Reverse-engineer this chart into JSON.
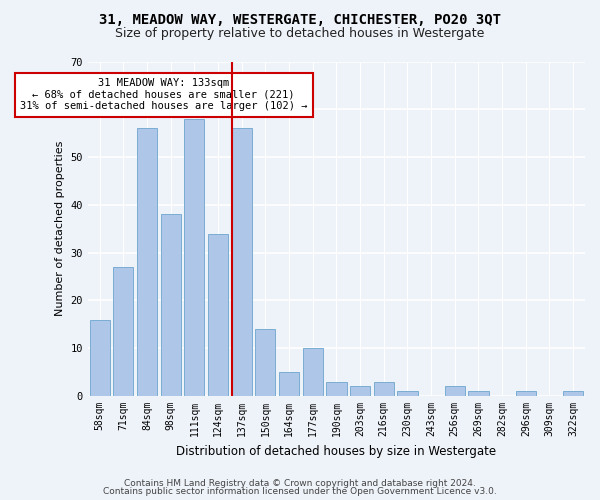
{
  "title_main": "31, MEADOW WAY, WESTERGATE, CHICHESTER, PO20 3QT",
  "title_sub": "Size of property relative to detached houses in Westergate",
  "xlabel": "Distribution of detached houses by size in Westergate",
  "ylabel": "Number of detached properties",
  "categories": [
    "58sqm",
    "71sqm",
    "84sqm",
    "98sqm",
    "111sqm",
    "124sqm",
    "137sqm",
    "150sqm",
    "164sqm",
    "177sqm",
    "190sqm",
    "203sqm",
    "216sqm",
    "230sqm",
    "243sqm",
    "256sqm",
    "269sqm",
    "282sqm",
    "296sqm",
    "309sqm",
    "322sqm"
  ],
  "values": [
    16,
    27,
    56,
    38,
    58,
    34,
    56,
    14,
    5,
    10,
    3,
    2,
    3,
    1,
    0,
    2,
    1,
    0,
    1,
    0,
    1
  ],
  "bar_color": "#aec6e8",
  "bar_edge_color": "#7aadd4",
  "vline_color": "#cc0000",
  "vline_x_index": 6,
  "annotation_line1": "31 MEADOW WAY: 133sqm",
  "annotation_line2": "← 68% of detached houses are smaller (221)",
  "annotation_line3": "31% of semi-detached houses are larger (102) →",
  "annotation_box_color": "#ffffff",
  "annotation_box_edge": "#cc0000",
  "ylim": [
    0,
    70
  ],
  "yticks": [
    0,
    10,
    20,
    30,
    40,
    50,
    60,
    70
  ],
  "footer1": "Contains HM Land Registry data © Crown copyright and database right 2024.",
  "footer2": "Contains public sector information licensed under the Open Government Licence v3.0.",
  "bg_color": "#eef2f9",
  "plot_bg_color": "#eef2f9",
  "grid_color": "#ffffff",
  "title_fontsize": 10,
  "subtitle_fontsize": 9,
  "xlabel_fontsize": 8.5,
  "ylabel_fontsize": 8,
  "tick_fontsize": 7,
  "footer_fontsize": 6.5,
  "ann_fontsize": 7.5
}
